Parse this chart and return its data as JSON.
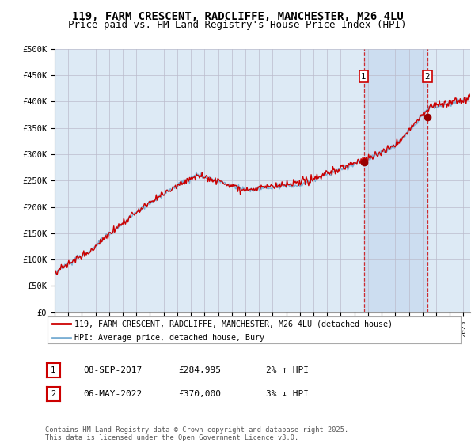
{
  "title": "119, FARM CRESCENT, RADCLIFFE, MANCHESTER, M26 4LU",
  "subtitle": "Price paid vs. HM Land Registry's House Price Index (HPI)",
  "ylabel_ticks": [
    "£0",
    "£50K",
    "£100K",
    "£150K",
    "£200K",
    "£250K",
    "£300K",
    "£350K",
    "£400K",
    "£450K",
    "£500K"
  ],
  "ytick_values": [
    0,
    50000,
    100000,
    150000,
    200000,
    250000,
    300000,
    350000,
    400000,
    450000,
    500000
  ],
  "ylim": [
    0,
    500000
  ],
  "xlim_start": 1995.0,
  "xlim_end": 2025.5,
  "legend_line1": "119, FARM CRESCENT, RADCLIFFE, MANCHESTER, M26 4LU (detached house)",
  "legend_line2": "HPI: Average price, detached house, Bury",
  "annotation1_label": "1",
  "annotation1_date": "08-SEP-2017",
  "annotation1_price": "£284,995",
  "annotation1_hpi": "2% ↑ HPI",
  "annotation2_label": "2",
  "annotation2_date": "06-MAY-2022",
  "annotation2_price": "£370,000",
  "annotation2_hpi": "3% ↓ HPI",
  "footer": "Contains HM Land Registry data © Crown copyright and database right 2025.\nThis data is licensed under the Open Government Licence v3.0.",
  "line_color_red": "#cc0000",
  "line_color_blue": "#7bafd4",
  "bg_color": "#ddeaf5",
  "grid_color": "#bbbbcc",
  "purchase1_x": 2017.69,
  "purchase1_y": 284995,
  "purchase2_x": 2022.35,
  "purchase2_y": 370000,
  "title_fontsize": 10,
  "subtitle_fontsize": 9
}
